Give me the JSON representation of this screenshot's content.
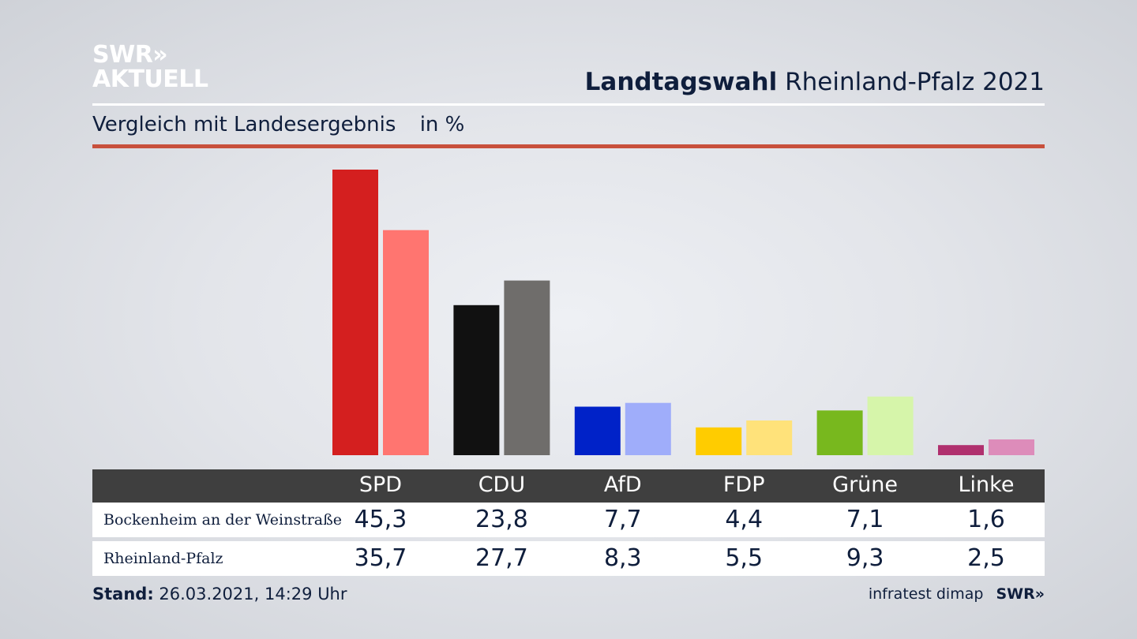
{
  "header": {
    "logo_line1": "SWR»",
    "logo_line2": "AKTUELL",
    "title_strong": "Landtagswahl",
    "title_rest": "Rheinland-Pfalz 2021",
    "subtitle": "Vergleich mit Landesergebnis",
    "unit": "in %"
  },
  "chart_data": {
    "type": "bar",
    "categories": [
      "SPD",
      "CDU",
      "AfD",
      "FDP",
      "Grüne",
      "Linke"
    ],
    "series": [
      {
        "name": "Bockenheim an der Weinstraße",
        "values": [
          45.3,
          23.8,
          7.7,
          4.4,
          7.1,
          1.6
        ]
      },
      {
        "name": "Rheinland-Pfalz",
        "values": [
          35.7,
          27.7,
          8.3,
          5.5,
          9.3,
          2.5
        ]
      }
    ],
    "colors": {
      "series1": [
        "#d41f1f",
        "#111111",
        "#0022c8",
        "#ffcc00",
        "#78b81e",
        "#b0306e"
      ],
      "series2": [
        "#ff7570",
        "#6f6d6b",
        "#9fadfa",
        "#ffe27a",
        "#d6f5aa",
        "#dd8cba"
      ]
    },
    "ylim": [
      0,
      45.3
    ]
  },
  "table": {
    "headers": [
      "SPD",
      "CDU",
      "AfD",
      "FDP",
      "Grüne",
      "Linke"
    ],
    "rows": [
      {
        "label": "Bockenheim an der Weinstraße",
        "values": [
          "45,3",
          "23,8",
          "7,7",
          "4,4",
          "7,1",
          "1,6"
        ]
      },
      {
        "label": "Rheinland-Pfalz",
        "values": [
          "35,7",
          "27,7",
          "8,3",
          "5,5",
          "9,3",
          "2,5"
        ]
      }
    ]
  },
  "footer": {
    "stand_label": "Stand:",
    "stand_value": "26.03.2021, 14:29 Uhr",
    "source": "infratest dimap",
    "brand": "SWR»"
  }
}
